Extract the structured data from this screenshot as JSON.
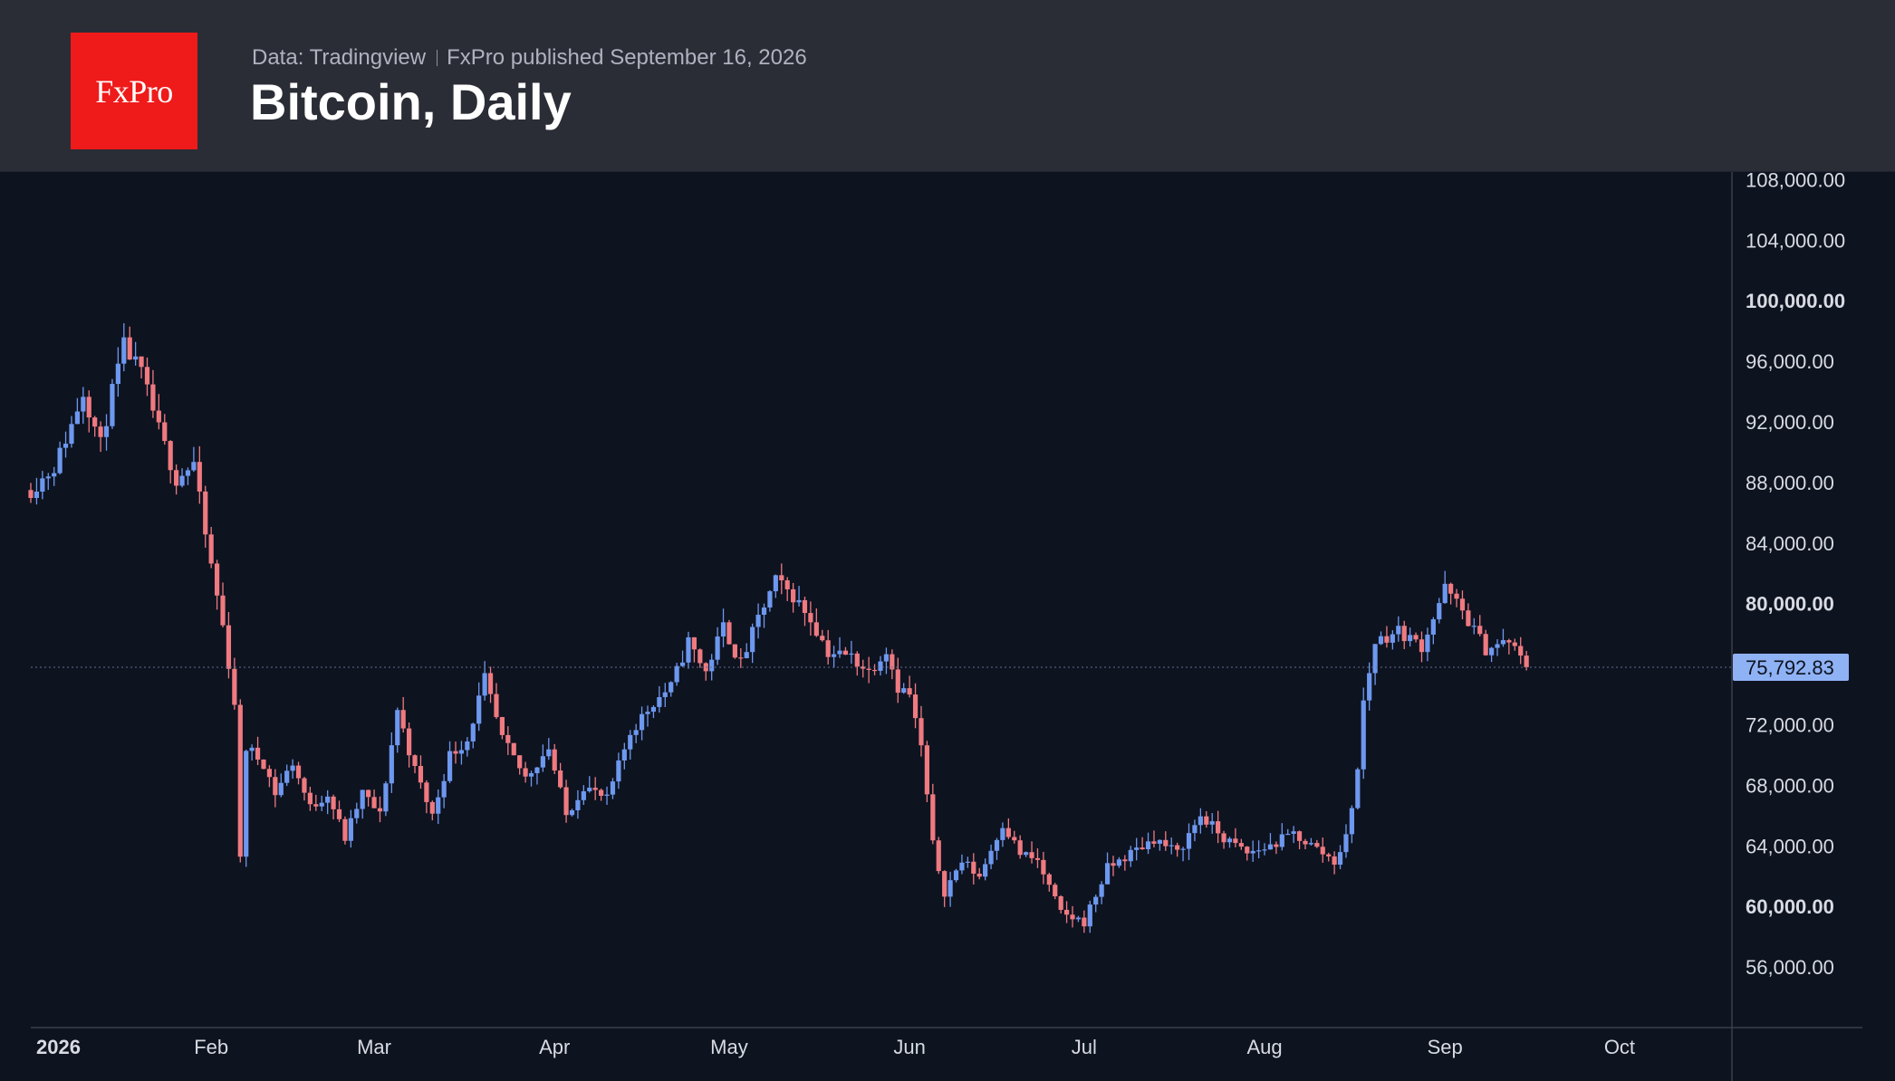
{
  "header": {
    "logo_text": "FxPro",
    "data_source": "Data: Tradingview",
    "published": "FxPro published September 16, 2026",
    "title": "Bitcoin, Daily"
  },
  "colors": {
    "background": "#0e1320",
    "header": "#2b2d36",
    "logo": "#ef1a1a",
    "up": "#6d98ef",
    "down": "#ef7a80",
    "axis_text": "#d8dbe2",
    "price_tag": "#8fb2f5"
  },
  "chart_data": {
    "type": "candlestick",
    "title": "Bitcoin, Daily",
    "x_axis_labels": [
      "2026",
      "Feb",
      "Mar",
      "Apr",
      "May",
      "Jun",
      "Jul",
      "Aug",
      "Sep",
      "Oct"
    ],
    "y_ticks": [
      {
        "value": 56000,
        "label": "56,000.00",
        "bold": false
      },
      {
        "value": 60000,
        "label": "60,000.00",
        "bold": true
      },
      {
        "value": 64000,
        "label": "64,000.00",
        "bold": false
      },
      {
        "value": 68000,
        "label": "68,000.00",
        "bold": false
      },
      {
        "value": 72000,
        "label": "72,000.00",
        "bold": false
      },
      {
        "value": 80000,
        "label": "80,000.00",
        "bold": true
      },
      {
        "value": 84000,
        "label": "84,000.00",
        "bold": false
      },
      {
        "value": 88000,
        "label": "88,000.00",
        "bold": false
      },
      {
        "value": 92000,
        "label": "92,000.00",
        "bold": false
      },
      {
        "value": 96000,
        "label": "96,000.00",
        "bold": false
      },
      {
        "value": 100000,
        "label": "100,000.00",
        "bold": true
      },
      {
        "value": 104000,
        "label": "104,000.00",
        "bold": false
      },
      {
        "value": 108000,
        "label": "108,000.00",
        "bold": false
      }
    ],
    "ylim": [
      52000,
      108500
    ],
    "x_range": [
      "2026-01-01",
      "2026-10-20"
    ],
    "last_price": 75792.83,
    "last_price_label": "75,792.83",
    "weekly_path": [
      [
        "2026-01-01",
        87500
      ],
      [
        "2026-01-05",
        89000
      ],
      [
        "2026-01-08",
        91800
      ],
      [
        "2026-01-10",
        94000
      ],
      [
        "2026-01-13",
        90500
      ],
      [
        "2026-01-15",
        94000
      ],
      [
        "2026-01-17",
        97000
      ],
      [
        "2026-01-20",
        95200
      ],
      [
        "2026-01-23",
        91500
      ],
      [
        "2026-01-26",
        88200
      ],
      [
        "2026-01-29",
        89300
      ],
      [
        "2026-01-31",
        84500
      ],
      [
        "2026-02-03",
        78500
      ],
      [
        "2026-02-05",
        73500
      ],
      [
        "2026-02-06",
        63000
      ],
      [
        "2026-02-07",
        70500
      ],
      [
        "2026-02-10",
        69500
      ],
      [
        "2026-02-12",
        67500
      ],
      [
        "2026-02-15",
        69500
      ],
      [
        "2026-02-18",
        66500
      ],
      [
        "2026-02-21",
        67500
      ],
      [
        "2026-02-24",
        64500
      ],
      [
        "2026-02-27",
        67500
      ],
      [
        "2026-03-02",
        66000
      ],
      [
        "2026-03-05",
        73000
      ],
      [
        "2026-03-08",
        69000
      ],
      [
        "2026-03-11",
        66000
      ],
      [
        "2026-03-14",
        70000
      ],
      [
        "2026-03-17",
        71000
      ],
      [
        "2026-03-20",
        75000
      ],
      [
        "2026-03-23",
        71000
      ],
      [
        "2026-03-27",
        68500
      ],
      [
        "2026-03-31",
        70500
      ],
      [
        "2026-04-03",
        66000
      ],
      [
        "2026-04-06",
        68000
      ],
      [
        "2026-04-10",
        67000
      ],
      [
        "2026-04-14",
        71500
      ],
      [
        "2026-04-18",
        73500
      ],
      [
        "2026-04-21",
        74500
      ],
      [
        "2026-04-24",
        77500
      ],
      [
        "2026-04-27",
        75500
      ],
      [
        "2026-04-30",
        78500
      ],
      [
        "2026-05-03",
        76000
      ],
      [
        "2026-05-06",
        79000
      ],
      [
        "2026-05-09",
        81500
      ],
      [
        "2026-05-12",
        80500
      ],
      [
        "2026-05-15",
        79000
      ],
      [
        "2026-05-18",
        76800
      ],
      [
        "2026-05-22",
        76500
      ],
      [
        "2026-05-25",
        75500
      ],
      [
        "2026-05-28",
        77000
      ],
      [
        "2026-05-30",
        74500
      ],
      [
        "2026-06-01",
        74000
      ],
      [
        "2026-06-03",
        70500
      ],
      [
        "2026-06-05",
        64000
      ],
      [
        "2026-06-07",
        61000
      ],
      [
        "2026-06-10",
        63000
      ],
      [
        "2026-06-13",
        62000
      ],
      [
        "2026-06-17",
        65500
      ],
      [
        "2026-06-20",
        63500
      ],
      [
        "2026-06-23",
        63000
      ],
      [
        "2026-06-27",
        59500
      ],
      [
        "2026-07-01",
        59000
      ],
      [
        "2026-07-05",
        62500
      ],
      [
        "2026-07-09",
        63500
      ],
      [
        "2026-07-13",
        64500
      ],
      [
        "2026-07-17",
        63500
      ],
      [
        "2026-07-21",
        66000
      ],
      [
        "2026-07-25",
        64500
      ],
      [
        "2026-07-29",
        63500
      ],
      [
        "2026-08-02",
        64000
      ],
      [
        "2026-08-06",
        64800
      ],
      [
        "2026-08-10",
        63800
      ],
      [
        "2026-08-13",
        63000
      ],
      [
        "2026-08-15",
        64500
      ],
      [
        "2026-08-17",
        69000
      ],
      [
        "2026-08-18",
        73500
      ],
      [
        "2026-08-20",
        77500
      ],
      [
        "2026-08-24",
        78200
      ],
      [
        "2026-08-28",
        77200
      ],
      [
        "2026-09-01",
        81000
      ],
      [
        "2026-09-04",
        79500
      ],
      [
        "2026-09-08",
        77000
      ],
      [
        "2026-09-12",
        77500
      ],
      [
        "2026-09-15",
        75792.83
      ]
    ]
  }
}
